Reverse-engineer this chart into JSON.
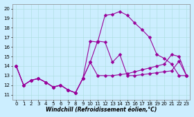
{
  "xlabel": "Windchill (Refroidissement éolien,°C)",
  "bg_color": "#cceeff",
  "line_color": "#990099",
  "xlim": [
    -0.5,
    23.5
  ],
  "ylim": [
    10.5,
    20.5
  ],
  "xticks": [
    0,
    1,
    2,
    3,
    4,
    5,
    6,
    7,
    8,
    9,
    10,
    11,
    12,
    13,
    14,
    15,
    16,
    17,
    18,
    19,
    20,
    21,
    22,
    23
  ],
  "yticks": [
    11,
    12,
    13,
    14,
    15,
    16,
    17,
    18,
    19,
    20
  ],
  "line1_x": [
    0,
    1,
    2,
    3,
    4,
    5,
    6,
    7,
    8,
    9,
    10,
    11,
    12,
    13,
    14,
    15,
    16,
    17,
    18,
    19,
    20,
    21,
    22,
    23
  ],
  "line1_y": [
    14.0,
    12.0,
    12.5,
    12.7,
    12.3,
    11.8,
    12.0,
    11.5,
    11.2,
    12.7,
    16.6,
    16.5,
    19.3,
    19.4,
    19.7,
    19.3,
    18.5,
    17.8,
    17.0,
    15.2,
    14.8,
    14.2,
    13.0,
    13.0
  ],
  "line2_x": [
    0,
    1,
    2,
    3,
    4,
    5,
    6,
    7,
    8,
    9,
    10,
    11,
    12,
    13,
    14,
    15,
    16,
    17,
    18,
    19,
    20,
    21,
    22,
    23
  ],
  "line2_y": [
    14.0,
    12.0,
    12.5,
    12.7,
    12.3,
    11.8,
    12.0,
    11.5,
    11.2,
    12.7,
    14.4,
    16.6,
    16.5,
    14.4,
    15.2,
    13.0,
    13.0,
    13.1,
    13.2,
    13.3,
    13.4,
    13.5,
    14.5,
    13.0
  ],
  "line3_x": [
    0,
    1,
    2,
    3,
    4,
    5,
    6,
    7,
    8,
    9,
    10,
    11,
    12,
    13,
    14,
    15,
    16,
    17,
    18,
    19,
    20,
    21,
    22,
    23
  ],
  "line3_y": [
    14.0,
    12.0,
    12.5,
    12.7,
    12.3,
    11.8,
    12.0,
    11.5,
    11.2,
    12.7,
    14.4,
    13.0,
    13.0,
    13.0,
    13.1,
    13.2,
    13.4,
    13.6,
    13.8,
    14.0,
    14.2,
    15.2,
    15.0,
    13.0
  ],
  "marker": "D",
  "markersize": 2.5,
  "linewidth": 0.8,
  "grid_color": "#aadddd",
  "tick_fontsize": 5.0,
  "xlabel_fontsize": 5.5
}
